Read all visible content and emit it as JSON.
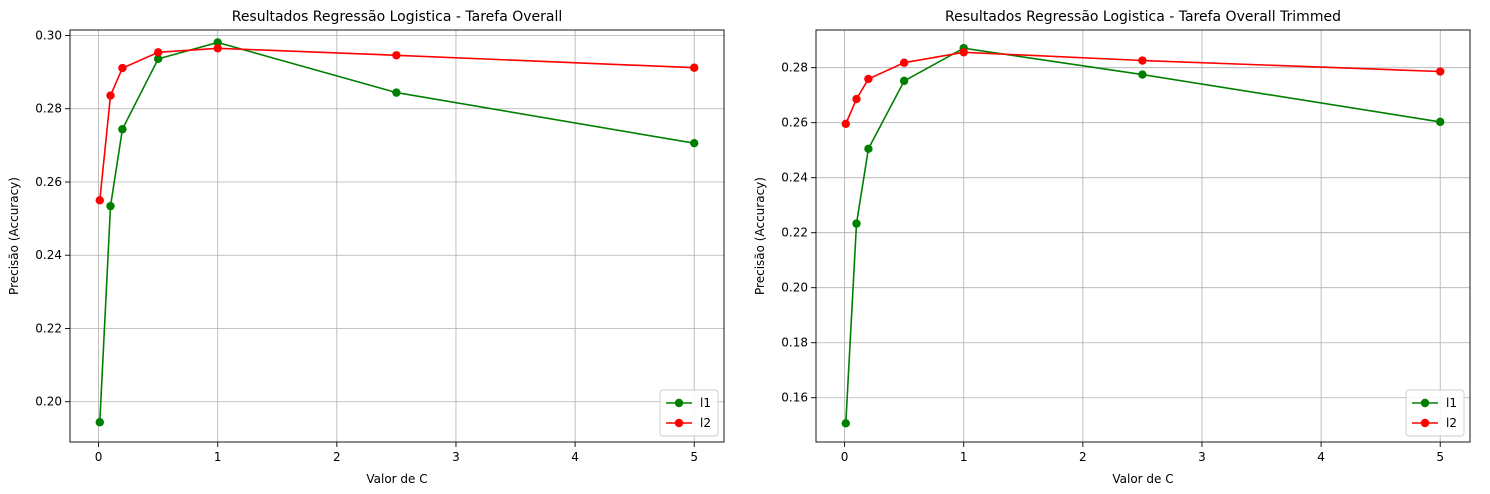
{
  "chart_data": [
    {
      "type": "line",
      "title": "Resultados Regressão Logistica - Tarefa Overall",
      "xlabel": "Valor de C",
      "ylabel": "Precisão (Accuracy)",
      "x": [
        0.01,
        0.1,
        0.2,
        0.5,
        1,
        2.5,
        5
      ],
      "xlim": [
        -0.24,
        5.25
      ],
      "ylim": [
        0.189,
        0.3015
      ],
      "xticks": [
        0,
        1,
        2,
        3,
        4,
        5
      ],
      "xtick_labels": [
        "0",
        "1",
        "2",
        "3",
        "4",
        "5"
      ],
      "yticks": [
        0.2,
        0.22,
        0.24,
        0.26,
        0.28,
        0.3
      ],
      "ytick_labels": [
        "0.20",
        "0.22",
        "0.24",
        "0.26",
        "0.28",
        "0.30"
      ],
      "grid": true,
      "legend_position": "lower-right",
      "series": [
        {
          "name": "l1",
          "color": "#008000",
          "values": [
            0.1944,
            0.2534,
            0.2744,
            0.2936,
            0.2981,
            0.2844,
            0.2706
          ]
        },
        {
          "name": "l2",
          "color": "#ff0000",
          "values": [
            0.255,
            0.2836,
            0.2911,
            0.2954,
            0.2965,
            0.2946,
            0.2912
          ]
        }
      ]
    },
    {
      "type": "line",
      "title": "Resultados Regressão Logistica - Tarefa Overall Trimmed",
      "xlabel": "Valor de C",
      "ylabel": "Precisão (Accuracy)",
      "x": [
        0.01,
        0.1,
        0.2,
        0.5,
        1,
        2.5,
        5
      ],
      "xlim": [
        -0.24,
        5.25
      ],
      "ylim": [
        0.1439,
        0.2937
      ],
      "xticks": [
        0,
        1,
        2,
        3,
        4,
        5
      ],
      "xtick_labels": [
        "0",
        "1",
        "2",
        "3",
        "4",
        "5"
      ],
      "yticks": [
        0.16,
        0.18,
        0.2,
        0.22,
        0.24,
        0.26,
        0.28
      ],
      "ytick_labels": [
        "0.16",
        "0.18",
        "0.20",
        "0.22",
        "0.24",
        "0.26",
        "0.28"
      ],
      "grid": true,
      "legend_position": "lower-right",
      "series": [
        {
          "name": "l1",
          "color": "#008000",
          "values": [
            0.1507,
            0.2233,
            0.2505,
            0.2752,
            0.2871,
            0.2775,
            0.2603
          ]
        },
        {
          "name": "l2",
          "color": "#ff0000",
          "values": [
            0.2596,
            0.2686,
            0.2759,
            0.2818,
            0.2856,
            0.2826,
            0.2786
          ]
        }
      ]
    }
  ]
}
